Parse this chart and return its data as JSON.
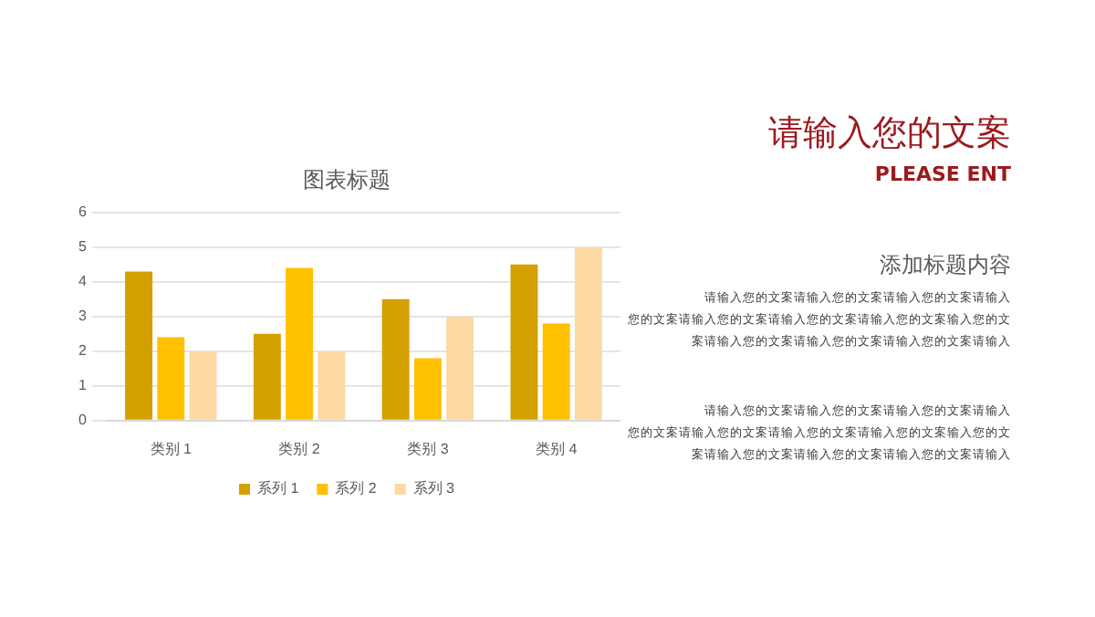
{
  "chart_data": {
    "type": "bar",
    "title": "图表标题",
    "categories": [
      "类别 1",
      "类别 2",
      "类别 3",
      "类别 4"
    ],
    "series": [
      {
        "name": "系列 1",
        "color": "#d4a000",
        "values": [
          4.3,
          2.5,
          3.5,
          4.5
        ]
      },
      {
        "name": "系列 2",
        "color": "#ffc000",
        "values": [
          2.4,
          4.4,
          1.8,
          2.8
        ]
      },
      {
        "name": "系列 3",
        "color": "#fdd9a3",
        "values": [
          2,
          2,
          3,
          5
        ]
      }
    ],
    "ylim": [
      0,
      6
    ],
    "yticks": [
      0,
      1,
      2,
      3,
      4,
      5,
      6
    ],
    "grid": "y",
    "legend": "bottom",
    "annotations": [
      "请输入您的文案",
      "PLEASE ENT",
      "添加标题内容",
      "请输入您的文案请输入您的文案请输入您的文案请输入",
      "您的文案请输入您的文案请输入您的文案请输入您的文案输入您的文",
      "案请输入您的文案请输入您的文案请输入您的文案请输入",
      "请输入您的文案请输入您的文案请输入您的文案请输入",
      "您的文案请输入您的文案请输入您的文案请输入您的文案输入您的文",
      "案请输入您的文案请输入您的文案请输入您的文案请输入"
    ]
  }
}
